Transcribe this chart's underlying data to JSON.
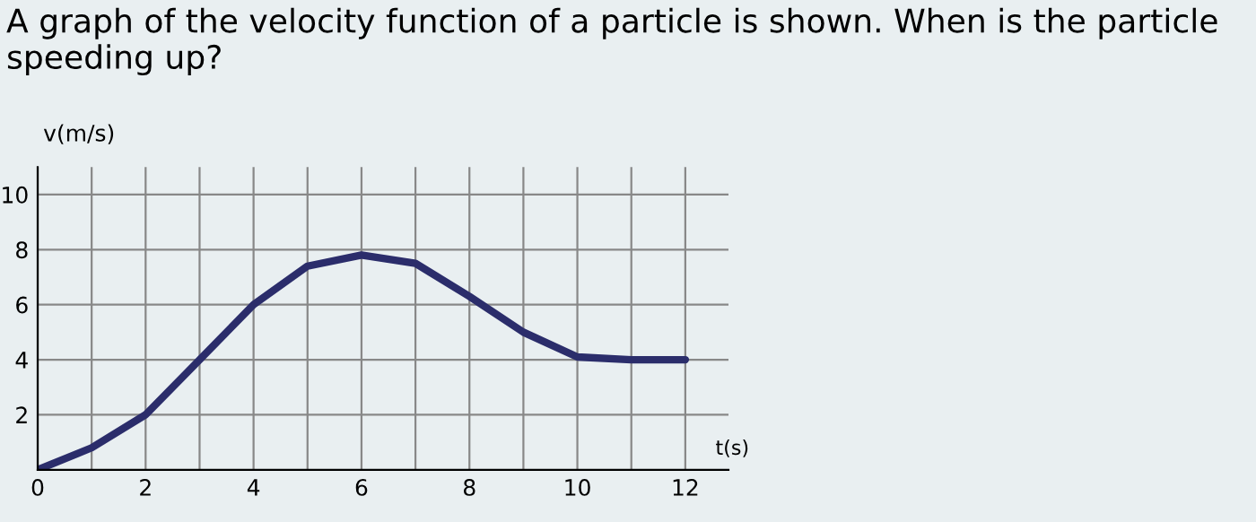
{
  "chart_data": {
    "type": "line",
    "title": "A graph of the velocity function of a particle is shown. When is the particle speeding up?",
    "xlabel": "t(s)",
    "ylabel": "v(m/s)",
    "x": [
      0,
      1,
      2,
      3,
      4,
      5,
      6,
      7,
      8,
      9,
      10,
      11,
      12
    ],
    "series": [
      {
        "color": "#2b2d6b",
        "values": [
          0,
          0.8,
          2,
          4,
          6,
          7.4,
          7.8,
          7.5,
          6.3,
          5,
          4.1,
          4,
          4
        ]
      }
    ],
    "xlim": [
      0,
      12.8
    ],
    "ylim": [
      0,
      11
    ],
    "xticks": [
      0,
      {
        "value": 1,
        "label": null
      },
      2,
      {
        "value": 3,
        "label": null
      },
      4,
      {
        "value": 5,
        "label": null
      },
      6,
      {
        "value": 7,
        "label": null
      },
      8,
      {
        "value": 9,
        "label": null
      },
      10,
      {
        "value": 11,
        "label": null
      },
      12
    ],
    "yticks": [
      2,
      4,
      6,
      8,
      10
    ],
    "grid": true,
    "marker": "none",
    "line_style": "solid"
  }
}
